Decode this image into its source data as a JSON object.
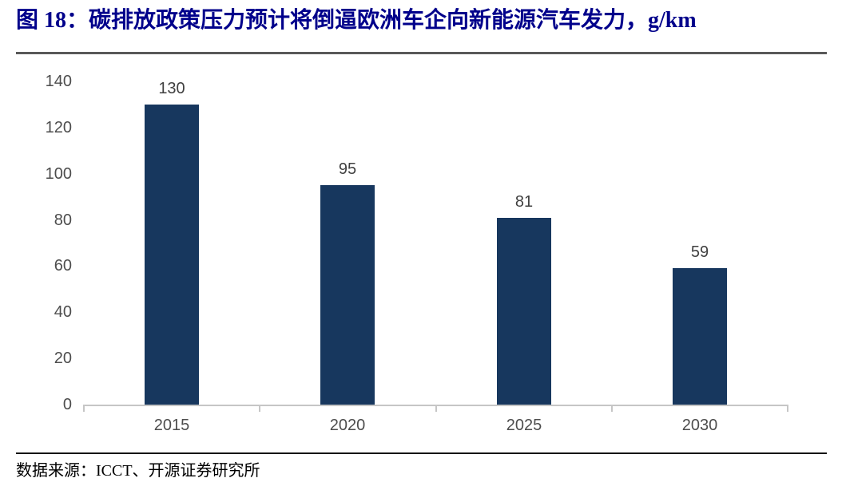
{
  "header": {
    "title": "图 18：碳排放政策压力预计将倒逼欧洲车企向新能源汽车发力，g/km"
  },
  "footer": {
    "source": "数据来源：ICCT、开源证券研究所"
  },
  "colors": {
    "bar": "#17375E",
    "title": "#00008B",
    "axis_line": "#C6C6C6",
    "axis_label": "#4D4D4D",
    "value_label": "#404040",
    "top_divider": "#595959",
    "bottom_divider": "#111111"
  },
  "chart_data": {
    "type": "bar",
    "title": "图 18：碳排放政策压力预计将倒逼欧洲车企向新能源汽车发力，g/km",
    "unit": "g/km",
    "categories": [
      "2015",
      "2020",
      "2025",
      "2030"
    ],
    "values": [
      130,
      95,
      81,
      59
    ],
    "data_labels": [
      "130",
      "95",
      "81",
      "59"
    ],
    "xlabel": "",
    "ylabel": "",
    "ylim": [
      0,
      140
    ],
    "yticks": [
      0,
      20,
      40,
      60,
      80,
      100,
      120,
      140
    ],
    "grid": false,
    "legend_position": "none",
    "bar_color": "#17375E",
    "source": "数据来源：ICCT、开源证券研究所"
  }
}
